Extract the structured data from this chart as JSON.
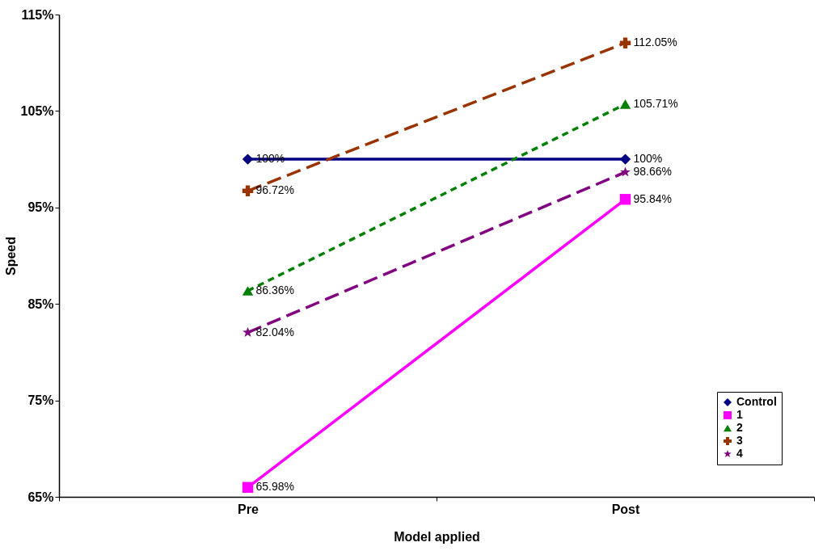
{
  "chart_data": {
    "type": "line",
    "xlabel": "Model applied",
    "ylabel": "Speed",
    "categories": [
      "Pre",
      "Post"
    ],
    "ylim": [
      65,
      115
    ],
    "yticks": [
      {
        "value": 65,
        "label": "65%"
      },
      {
        "value": 75,
        "label": "75%"
      },
      {
        "value": 85,
        "label": "85%"
      },
      {
        "value": 95,
        "label": "95%"
      },
      {
        "value": 105,
        "label": "105%"
      },
      {
        "value": 115,
        "label": "115%"
      }
    ],
    "grid": false,
    "legend": "bottom right",
    "series": [
      {
        "name": "Control",
        "color": "#000080",
        "values": [
          100,
          100
        ],
        "value_labels": [
          "100%",
          "100%"
        ],
        "marker": "diamond",
        "line_style": "solid"
      },
      {
        "name": "1",
        "color": "#ff00ff",
        "values": [
          65.98,
          95.84
        ],
        "value_labels": [
          "65.98%",
          "95.84%"
        ],
        "marker": "square",
        "line_style": "solid"
      },
      {
        "name": "2",
        "color": "#008000",
        "values": [
          86.36,
          105.71
        ],
        "value_labels": [
          "86.36%",
          "105.71%"
        ],
        "marker": "triangle",
        "line_style": "dotted"
      },
      {
        "name": "3",
        "color": "#993300",
        "values": [
          96.72,
          112.05
        ],
        "value_labels": [
          "96.72%",
          "112.05%"
        ],
        "marker": "cross",
        "line_style": "dashed"
      },
      {
        "name": "4",
        "color": "#800080",
        "values": [
          82.04,
          98.66
        ],
        "value_labels": [
          "82.04%",
          "98.66%"
        ],
        "marker": "star",
        "line_style": "dashed"
      }
    ]
  }
}
